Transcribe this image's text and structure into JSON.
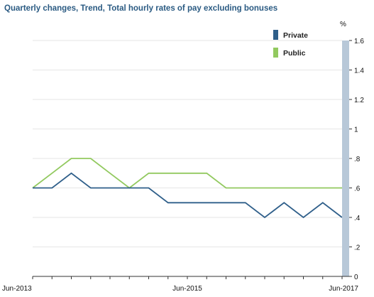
{
  "chart_data": {
    "type": "line",
    "title": "Quarterly changes, Trend, Total hourly rates of pay excluding bonuses",
    "ylabel": "%",
    "xlabel": "",
    "ylim": [
      0,
      1.6
    ],
    "y_ticks": [
      {
        "value": 0,
        "label": "0"
      },
      {
        "value": 0.2,
        "label": ".2"
      },
      {
        "value": 0.4,
        "label": ".4"
      },
      {
        "value": 0.6,
        "label": ".6"
      },
      {
        "value": 0.8,
        "label": ".8"
      },
      {
        "value": 1.0,
        "label": "1"
      },
      {
        "value": 1.2,
        "label": "1.2"
      },
      {
        "value": 1.4,
        "label": "1.4"
      },
      {
        "value": 1.6,
        "label": "1.6"
      }
    ],
    "x": [
      "Jun-2013",
      "Sep-2013",
      "Dec-2013",
      "Mar-2014",
      "Jun-2014",
      "Sep-2014",
      "Dec-2014",
      "Mar-2015",
      "Jun-2015",
      "Sep-2015",
      "Dec-2015",
      "Mar-2016",
      "Jun-2016",
      "Sep-2016",
      "Dec-2016",
      "Mar-2017",
      "Jun-2017"
    ],
    "x_tick_labels": [
      "Jun-2013",
      "Jun-2015",
      "Jun-2017"
    ],
    "grid": true,
    "legend_position": "top-right",
    "series": [
      {
        "name": "Private",
        "color": "#2f5f8a",
        "values": [
          0.6,
          0.6,
          0.7,
          0.6,
          0.6,
          0.6,
          0.6,
          0.5,
          0.5,
          0.5,
          0.5,
          0.5,
          0.4,
          0.5,
          0.4,
          0.5,
          0.4
        ]
      },
      {
        "name": "Public",
        "color": "#92c95f",
        "values": [
          0.6,
          0.7,
          0.8,
          0.8,
          0.7,
          0.6,
          0.7,
          0.7,
          0.7,
          0.7,
          0.6,
          0.6,
          0.6,
          0.6,
          0.6,
          0.6,
          0.6
        ]
      }
    ],
    "axis_bar_color": "#b8c8d8"
  }
}
